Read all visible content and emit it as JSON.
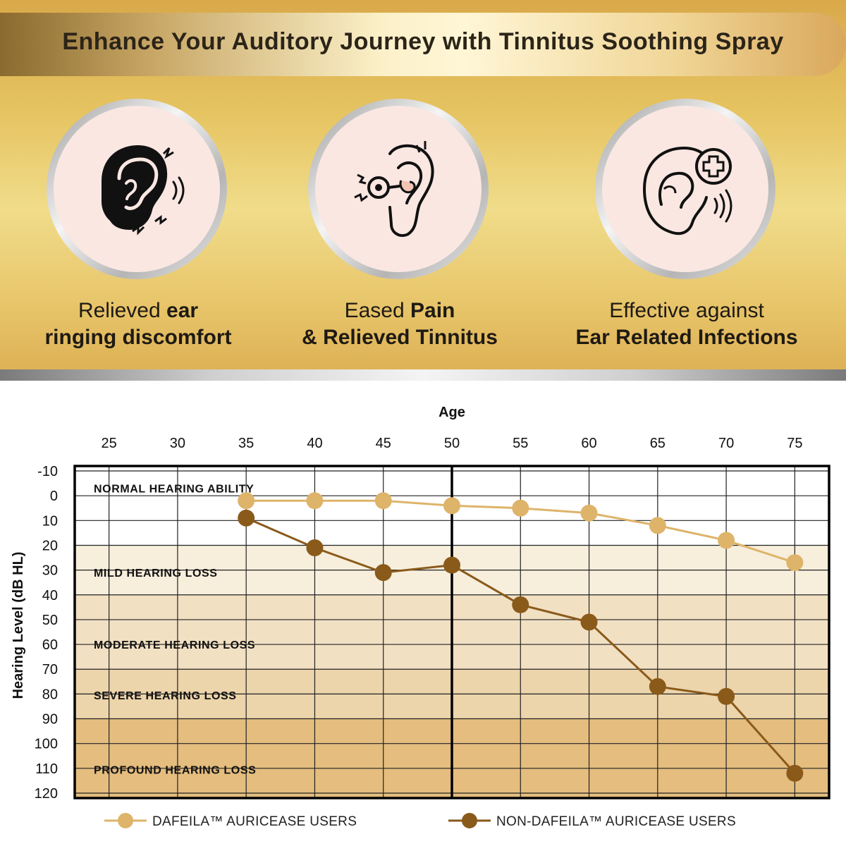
{
  "header": {
    "title": "Enhance Your Auditory Journey with Tinnitus Soothing Spray"
  },
  "features": [
    {
      "icon": "ear-ringing-icon",
      "line1_plain": "Relieved ",
      "line1_bold": "ear",
      "line2_bold": "ringing discomfort"
    },
    {
      "icon": "ear-pain-icon",
      "line1_plain": "Eased ",
      "line1_bold": "Pain",
      "line2_bold": "& Relieved Tinnitus"
    },
    {
      "icon": "ear-infection-icon",
      "line1_plain": "Effective against",
      "line1_bold": "",
      "line2_bold": "Ear Related Infections"
    }
  ],
  "chart_data": {
    "type": "line",
    "xlabel": "Age",
    "ylabel": "Hearing Level (dB HL)",
    "x_ticks": [
      25,
      30,
      35,
      40,
      45,
      50,
      55,
      60,
      65,
      70,
      75
    ],
    "y_ticks": [
      -10,
      0,
      10,
      20,
      30,
      40,
      50,
      60,
      70,
      80,
      90,
      100,
      110,
      120
    ],
    "xlim": [
      22.5,
      77.5
    ],
    "ylim": [
      -12,
      122
    ],
    "y_inverted": true,
    "x_axis_position": "top",
    "grid": true,
    "highlight_x": 50,
    "zones": [
      {
        "label": "NORMAL HEARING ABILITY",
        "from": -12,
        "to": 20,
        "label_at": -3,
        "color": "#ffffff"
      },
      {
        "label": "MILD HEARING LOSS",
        "from": 20,
        "to": 40,
        "label_at": 31,
        "color": "#f7eedc"
      },
      {
        "label": "MODERATE HEARING LOSS",
        "from": 40,
        "to": 70,
        "label_at": 60,
        "color": "#f2e0c3"
      },
      {
        "label": "SEVERE HEARING LOSS",
        "from": 70,
        "to": 90,
        "label_at": 80.5,
        "color": "#ecd4ab"
      },
      {
        "label": "PROFOUND HEARING LOSS",
        "from": 90,
        "to": 122,
        "label_at": 110.5,
        "color": "#e4bd7f"
      }
    ],
    "series": [
      {
        "name": "DAFEILA™ AURICEASE USERS",
        "color": "#deb46a",
        "x": [
          35,
          40,
          45,
          50,
          55,
          60,
          65,
          70,
          75
        ],
        "y": [
          2,
          2,
          2,
          4,
          5,
          7,
          12,
          18,
          27
        ]
      },
      {
        "name": "NON-DAFEILA™ AURICEASE USERS",
        "color": "#8a5a1a",
        "x": [
          35,
          40,
          45,
          50,
          55,
          60,
          65,
          70,
          75
        ],
        "y": [
          9,
          21,
          31,
          28,
          44,
          51,
          77,
          81,
          112
        ]
      }
    ],
    "legend_position": "bottom"
  }
}
